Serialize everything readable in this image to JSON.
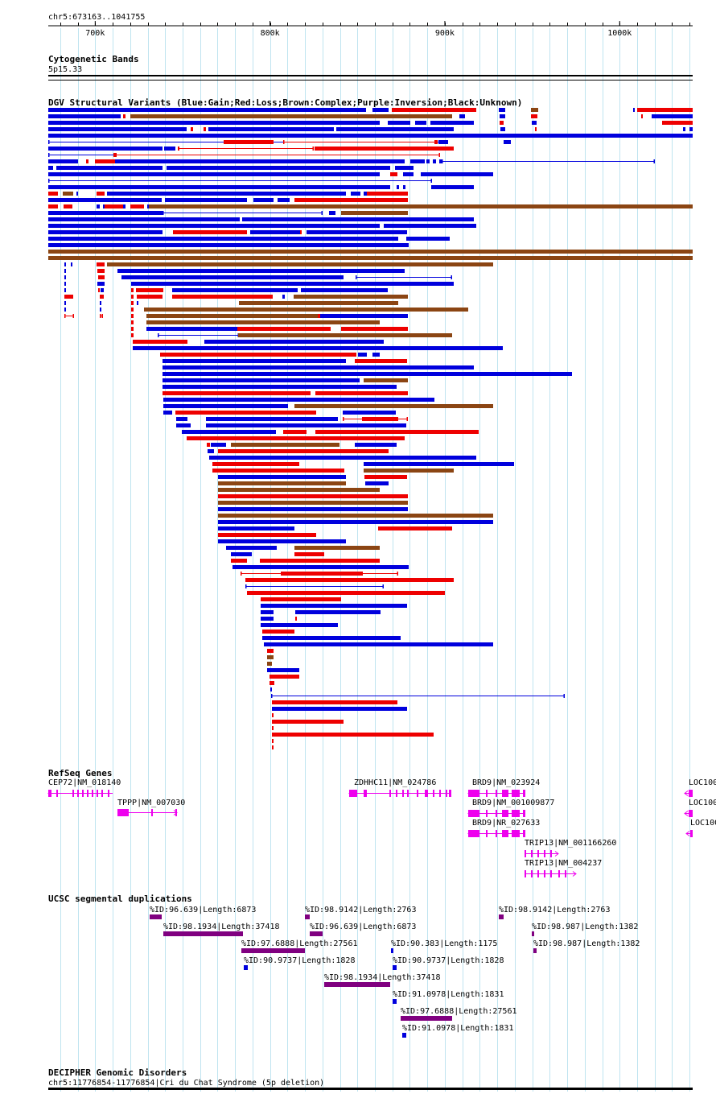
{
  "header": {
    "region": "chr5:673163..1041755",
    "range_start": 673163,
    "range_end": 1041755,
    "ticks": [
      {
        "pos": 700000,
        "label": "700k"
      },
      {
        "pos": 800000,
        "label": "800k"
      },
      {
        "pos": 900000,
        "label": "900k"
      },
      {
        "pos": 1000000,
        "label": "1000k"
      }
    ]
  },
  "cytoband": {
    "title": "Cytogenetic Bands",
    "band": "5p15.33"
  },
  "dgv": {
    "title": "DGV Structural Variants (Blue:Gain;Red:Loss;Brown:Complex;Purple:Inversion;Black:Unknown)",
    "colors": {
      "gain": "#0000dd",
      "loss": "#ee0000",
      "complex": "#8b4513"
    }
  },
  "refseq": {
    "title": "RefSeq Genes",
    "color": "#ee00ee",
    "genes": [
      {
        "label": "CEP72|NM_018140"
      },
      {
        "label": "TPPP|NM_007030"
      },
      {
        "label": "ZDHHC11|NM_024786"
      },
      {
        "label": "BRD9|NM_023924"
      },
      {
        "label": "BRD9|NM_001009877"
      },
      {
        "label": "BRD9|NR_027633"
      },
      {
        "label": "TRIP13|NM_001166260"
      },
      {
        "label": "TRIP13|NM_004237"
      },
      {
        "label": "LOC100"
      },
      {
        "label": "LOC100"
      },
      {
        "label": "LOC100"
      }
    ]
  },
  "segdups": {
    "title": "UCSC segmental duplications",
    "items": [
      {
        "label": "%ID:96.639|Length:6873"
      },
      {
        "label": "%ID:98.9142|Length:2763"
      },
      {
        "label": "%ID:98.9142|Length:2763"
      },
      {
        "label": "%ID:98.1934|Length:37418"
      },
      {
        "label": "%ID:96.639|Length:6873"
      },
      {
        "label": "%ID:98.987|Length:1382"
      },
      {
        "label": "%ID:97.6888|Length:27561"
      },
      {
        "label": "%ID:90.383|Length:1175"
      },
      {
        "label": "%ID:98.987|Length:1382"
      },
      {
        "label": "%ID:90.9737|Length:1828"
      },
      {
        "label": "%ID:90.9737|Length:1828"
      },
      {
        "label": "%ID:98.1934|Length:37418"
      },
      {
        "label": "%ID:91.0978|Length:1831"
      },
      {
        "label": "%ID:97.6888|Length:27561"
      },
      {
        "label": "%ID:91.0978|Length:1831"
      }
    ]
  },
  "decipher": {
    "title": "DECIPHER Genomic Disorders",
    "item": "chr5:11776854-11776854|Cri du Chat Syndrome (5p deletion)"
  }
}
